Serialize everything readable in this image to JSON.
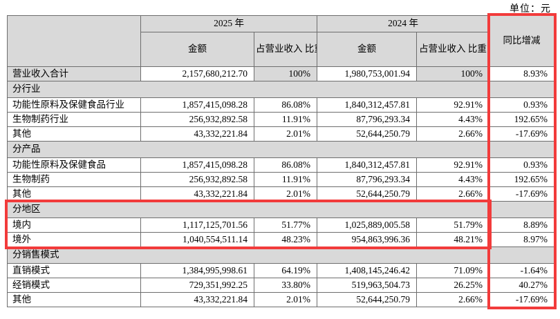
{
  "unit_label": "单位：元",
  "annotations": {
    "highlight_color": "#f23b3b",
    "yoy_column_highlighted": true,
    "region_section_highlighted": true
  },
  "table": {
    "headers": {
      "y2025": "2025 年",
      "y2024": "2024 年",
      "amount": "金额",
      "pct": "占营业收入\n比重",
      "yoy": "同比增减"
    },
    "rows": [
      {
        "type": "total",
        "label": "营业收入合计",
        "a2025": "2,157,680,212.70",
        "p2025": "100%",
        "a2024": "1,980,753,001.94",
        "p2024": "100%",
        "yoy": "8.93%"
      },
      {
        "type": "section",
        "label": "分行业"
      },
      {
        "type": "data",
        "label": "功能性原料及保健食品行业",
        "a2025": "1,857,415,098.28",
        "p2025": "86.08%",
        "a2024": "1,840,312,457.81",
        "p2024": "92.91%",
        "yoy": "0.93%"
      },
      {
        "type": "data",
        "label": "生物制药行业",
        "a2025": "256,932,892.58",
        "p2025": "11.91%",
        "a2024": "87,796,293.34",
        "p2024": "4.43%",
        "yoy": "192.65%"
      },
      {
        "type": "data",
        "label": "其他",
        "a2025": "43,332,221.84",
        "p2025": "2.01%",
        "a2024": "52,644,250.79",
        "p2024": "2.66%",
        "yoy": "-17.69%"
      },
      {
        "type": "section",
        "label": "分产品"
      },
      {
        "type": "data",
        "label": "功能性原料及保健食品",
        "a2025": "1,857,415,098.28",
        "p2025": "86.08%",
        "a2024": "1,840,312,457.81",
        "p2024": "92.91%",
        "yoy": "0.93%"
      },
      {
        "type": "data",
        "label": "生物制药",
        "a2025": "256,932,892.58",
        "p2025": "11.91%",
        "a2024": "87,796,293.34",
        "p2024": "4.43%",
        "yoy": "192.65%"
      },
      {
        "type": "data",
        "label": "其他",
        "a2025": "43,332,221.84",
        "p2025": "2.01%",
        "a2024": "52,644,250.79",
        "p2024": "2.66%",
        "yoy": "-17.69%"
      },
      {
        "type": "section",
        "label": "分地区",
        "highlight": true
      },
      {
        "type": "data",
        "label": "境内",
        "highlight": true,
        "a2025": "1,117,125,701.56",
        "p2025": "51.77%",
        "a2024": "1,025,889,005.58",
        "p2024": "51.79%",
        "yoy": "8.89%"
      },
      {
        "type": "data",
        "label": "境外",
        "highlight": true,
        "a2025": "1,040,554,511.14",
        "p2025": "48.23%",
        "a2024": "954,863,996.36",
        "p2024": "48.21%",
        "yoy": "8.97%"
      },
      {
        "type": "section",
        "label": "分销售模式"
      },
      {
        "type": "data",
        "label": "直销模式",
        "a2025": "1,384,995,998.61",
        "p2025": "64.19%",
        "a2024": "1,408,145,246.42",
        "p2024": "71.09%",
        "yoy": "-1.64%"
      },
      {
        "type": "data",
        "label": "经销模式",
        "a2025": "729,351,992.25",
        "p2025": "33.80%",
        "a2024": "519,963,504.73",
        "p2024": "26.25%",
        "yoy": "40.27%"
      },
      {
        "type": "data",
        "label": "其他",
        "a2025": "43,332,221.84",
        "p2025": "2.01%",
        "a2024": "52,644,250.79",
        "p2024": "2.66%",
        "yoy": "-17.69%"
      }
    ]
  }
}
